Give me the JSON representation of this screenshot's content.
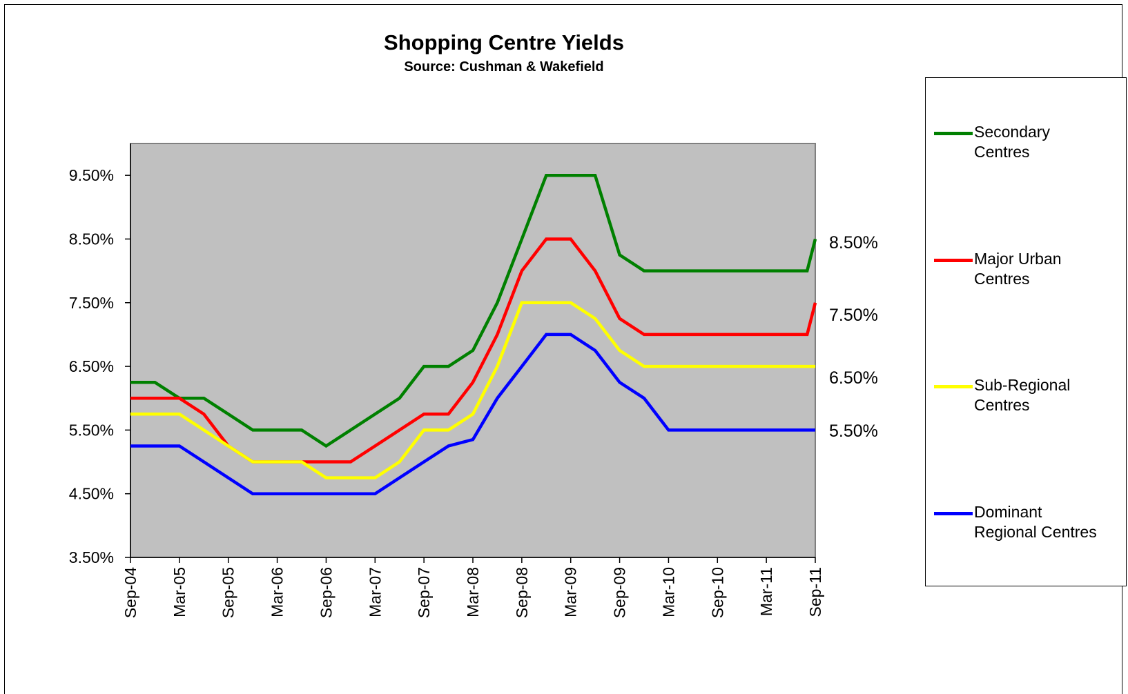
{
  "chart_data": {
    "type": "line",
    "title": "Shopping Centre Yields",
    "subtitle": "Source: Cushman & Wakefield",
    "xlabel": "",
    "ylabel": "",
    "ylim": [
      3.5,
      10.0
    ],
    "y_ticks": [
      "3.50%",
      "4.50%",
      "5.50%",
      "6.50%",
      "7.50%",
      "8.50%",
      "9.50%"
    ],
    "y_tick_values": [
      3.5,
      4.5,
      5.5,
      6.5,
      7.5,
      8.5,
      9.5
    ],
    "x_ticks": [
      "Sep-04",
      "Mar-05",
      "Sep-05",
      "Mar-06",
      "Sep-06",
      "Mar-07",
      "Sep-07",
      "Mar-08",
      "Sep-08",
      "Mar-09",
      "Sep-09",
      "Mar-10",
      "Sep-10",
      "Mar-11",
      "Sep-11"
    ],
    "x": [
      "Sep-04",
      "Dec-04",
      "Mar-05",
      "Jun-05",
      "Sep-05",
      "Dec-05",
      "Mar-06",
      "Jun-06",
      "Sep-06",
      "Dec-06",
      "Mar-07",
      "Jun-07",
      "Sep-07",
      "Dec-07",
      "Mar-08",
      "Jun-08",
      "Sep-08",
      "Dec-08",
      "Mar-09",
      "Jun-09",
      "Sep-09",
      "Dec-09",
      "Mar-10",
      "Jun-10",
      "Sep-10",
      "Dec-10",
      "Mar-11",
      "Jun-11",
      "Aug-11",
      "Sep-11"
    ],
    "plot_background": "#c0c0c0",
    "grid": false,
    "legend_position": "right",
    "series": [
      {
        "name": "Secondary Centres",
        "color": "#008000",
        "values": [
          6.25,
          6.25,
          6.0,
          6.0,
          5.75,
          5.5,
          5.5,
          5.5,
          5.25,
          5.5,
          5.75,
          6.0,
          6.5,
          6.5,
          6.75,
          7.5,
          8.5,
          9.5,
          9.5,
          9.5,
          8.25,
          8.0,
          8.0,
          8.0,
          8.0,
          8.0,
          8.0,
          8.0,
          8.0,
          8.5
        ],
        "end_label": "8.50%"
      },
      {
        "name": "Major Urban Centres",
        "color": "#ff0000",
        "values": [
          6.0,
          6.0,
          6.0,
          5.75,
          5.25,
          5.0,
          5.0,
          5.0,
          5.0,
          5.0,
          5.25,
          5.5,
          5.75,
          5.75,
          6.25,
          7.0,
          8.0,
          8.5,
          8.5,
          8.0,
          7.25,
          7.0,
          7.0,
          7.0,
          7.0,
          7.0,
          7.0,
          7.0,
          7.0,
          7.5
        ],
        "end_label": "7.50%"
      },
      {
        "name": "Sub-Regional Centres",
        "color": "#ffff00",
        "values": [
          5.75,
          5.75,
          5.75,
          5.5,
          5.25,
          5.0,
          5.0,
          5.0,
          4.75,
          4.75,
          4.75,
          5.0,
          5.5,
          5.5,
          5.75,
          6.5,
          7.5,
          7.5,
          7.5,
          7.25,
          6.75,
          6.5,
          6.5,
          6.5,
          6.5,
          6.5,
          6.5,
          6.5,
          6.5,
          6.5
        ],
        "end_label": "6.50%"
      },
      {
        "name": "Dominant Regional Centres",
        "color": "#0000ff",
        "values": [
          5.25,
          5.25,
          5.25,
          5.0,
          4.75,
          4.5,
          4.5,
          4.5,
          4.5,
          4.5,
          4.5,
          4.75,
          5.0,
          5.25,
          5.35,
          6.0,
          6.5,
          7.0,
          7.0,
          6.75,
          6.25,
          6.0,
          5.5,
          5.5,
          5.5,
          5.5,
          5.5,
          5.5,
          5.5,
          5.5
        ],
        "end_label": "5.50%"
      }
    ]
  },
  "legend": {
    "items": [
      {
        "line1": "Secondary",
        "line2": "Centres",
        "color": "#008000"
      },
      {
        "line1": "Major Urban",
        "line2": "Centres",
        "color": "#ff0000"
      },
      {
        "line1": "Sub-Regional",
        "line2": "Centres",
        "color": "#ffff00"
      },
      {
        "line1": "Dominant",
        "line2": "Regional Centres",
        "color": "#0000ff"
      }
    ]
  }
}
